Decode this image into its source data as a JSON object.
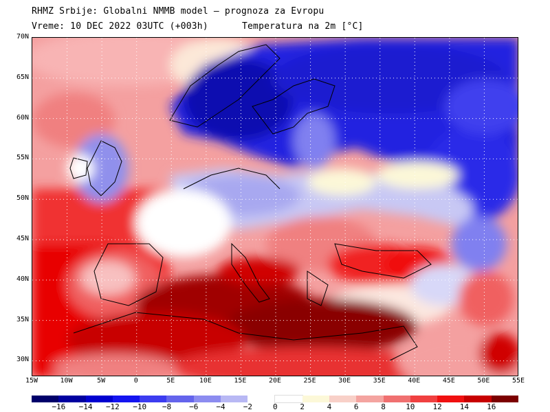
{
  "header": {
    "line1": "RHMZ Srbije: Globalni NMMB model — prognoza za Evropu",
    "line2_left": "Vreme: 10 DEC 2022 03UTC (+003h)",
    "line2_right": "Temperatura na 2m [°C]"
  },
  "map": {
    "lat_labels": [
      "70N",
      "65N",
      "60N",
      "55N",
      "50N",
      "45N",
      "40N",
      "35N",
      "30N"
    ],
    "lon_labels": [
      "15W",
      "10W",
      "5W",
      "0",
      "5E",
      "10E",
      "15E",
      "20E",
      "25E",
      "30E",
      "35E",
      "40E",
      "45E",
      "50E",
      "55E"
    ],
    "extent": {
      "lon_min": -15,
      "lon_max": 55,
      "lat_min": 28,
      "lat_max": 70
    },
    "gridline_style": "dotted white"
  },
  "colorbar": {
    "labels": [
      "−16",
      "−14",
      "−12",
      "−10",
      "−8",
      "−6",
      "−4",
      "−2",
      "0",
      "2",
      "4",
      "6",
      "8",
      "10",
      "12",
      "14",
      "16"
    ],
    "colors": [
      "#00006a",
      "#0000a0",
      "#0000d0",
      "#1414f0",
      "#3c3cf0",
      "#6464ec",
      "#8c8cf0",
      "#b8b8f4",
      "#ffffff",
      "#fcf8d8",
      "#f8d0c8",
      "#f4a4a0",
      "#f07070",
      "#f04040",
      "#f01010",
      "#c80000",
      "#7c0000"
    ]
  }
}
